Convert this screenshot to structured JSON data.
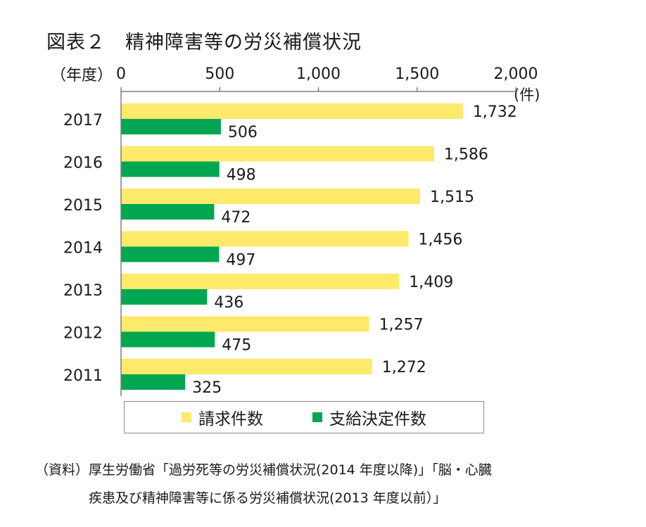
{
  "figure": {
    "title": "図表２　精神障害等の労災補償状況",
    "source_line1": "（資料）厚生労働省「過労死等の労災補償状況(2014 年度以降)」「脳・心臓",
    "source_line2": "疾患及び精神障害等に係る労災補償状況(2013 年度以前）」"
  },
  "colors": {
    "claims": "#fde96a",
    "approved": "#00a651",
    "axis": "#7f7f7f",
    "legend_border": "#8c8c8c"
  },
  "chart_data": {
    "type": "bar",
    "orientation": "horizontal",
    "categories": [
      "2017",
      "2016",
      "2015",
      "2014",
      "2013",
      "2012",
      "2011"
    ],
    "series": [
      {
        "name": "請求件数",
        "values": [
          1732,
          1586,
          1515,
          1456,
          1409,
          1257,
          1272
        ]
      },
      {
        "name": "支給決定件数",
        "values": [
          506,
          498,
          472,
          497,
          436,
          475,
          325
        ]
      }
    ],
    "data_labels": [
      [
        "1,732",
        "1,586",
        "1,515",
        "1,456",
        "1,409",
        "1,257",
        "1,272"
      ],
      [
        "506",
        "498",
        "472",
        "497",
        "436",
        "475",
        "325"
      ]
    ],
    "xlim": [
      0,
      2000
    ],
    "xticks": [
      0,
      500,
      1000,
      1500,
      2000
    ],
    "xtick_labels": [
      "0",
      "500",
      "1,000",
      "1,500",
      "2,000"
    ],
    "xlabel": "(件)",
    "ylabel": "（年度）",
    "axis_position": "top",
    "grid": false,
    "legend_position": "bottom"
  }
}
